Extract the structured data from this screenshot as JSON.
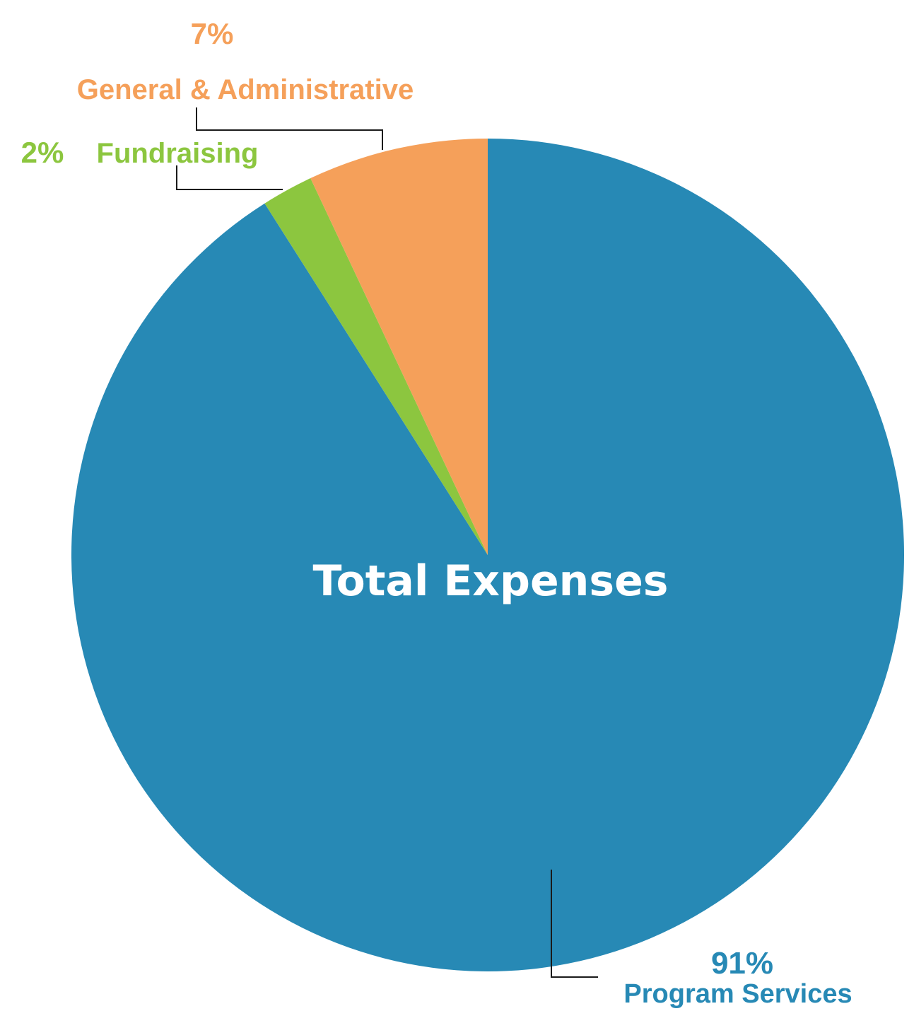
{
  "chart_data": {
    "type": "pie",
    "title": "Total Expenses",
    "slices": [
      {
        "name": "Program Services",
        "percent_label": "91%",
        "value": 91,
        "color": "#2789b5"
      },
      {
        "name": "Fundraising",
        "percent_label": "2%",
        "value": 2,
        "color": "#8cc63f"
      },
      {
        "name": "General & Administrative",
        "percent_label": "7%",
        "value": 7,
        "color": "#f5a05a"
      }
    ],
    "start_angle": "12 o'clock",
    "direction": "clockwise",
    "legend": "none",
    "labels": "outside with leader lines"
  },
  "colors": {
    "background": "#ffffff",
    "center_title": "#ffffff",
    "leader_line": "#1a1a1a"
  }
}
